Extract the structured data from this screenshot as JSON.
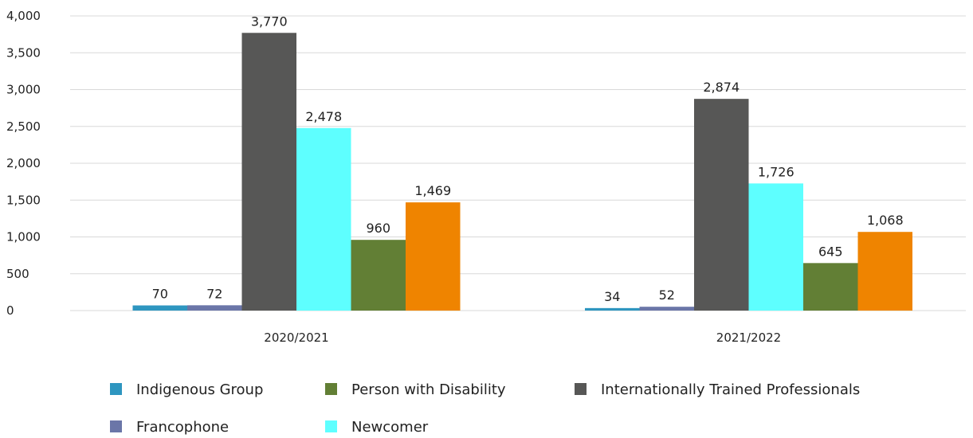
{
  "chart_data": {
    "type": "bar",
    "title": "",
    "xlabel": "",
    "ylabel": "",
    "ylim": [
      0,
      4000
    ],
    "yticks": [
      0,
      500,
      1000,
      1500,
      2000,
      2500,
      3000,
      3500,
      4000
    ],
    "ytick_labels": [
      "0",
      "500",
      "1,000",
      "1,500",
      "2,000",
      "2,500",
      "3,000",
      "3,500",
      "4,000"
    ],
    "grid": true,
    "legend_position": "bottom",
    "categories": [
      "2020/2021",
      "2021/2022"
    ],
    "series": [
      {
        "name": "Indigenous Group",
        "color": "#2e96c0",
        "values": [
          70,
          34
        ],
        "labels": [
          "70",
          "34"
        ]
      },
      {
        "name": "Francophone",
        "color": "#6b76a8",
        "values": [
          72,
          52
        ],
        "labels": [
          "72",
          "52"
        ]
      },
      {
        "name": "Internationally Trained Professionals",
        "color": "#575756",
        "values": [
          3770,
          2874
        ],
        "labels": [
          "3,770",
          "2,874"
        ]
      },
      {
        "name": "Newcomer",
        "color": "#5effff",
        "values": [
          2478,
          1726
        ],
        "labels": [
          "2,478",
          "1,726"
        ]
      },
      {
        "name": "Person with Disability",
        "color": "#627f35",
        "values": [
          960,
          645
        ],
        "labels": [
          "960",
          "645"
        ]
      },
      {
        "name": "",
        "color": "#ef8400",
        "values": [
          1469,
          1068
        ],
        "labels": [
          "1,469",
          "1,068"
        ]
      }
    ],
    "legend": [
      {
        "series_index": 0,
        "label": "Indigenous Group"
      },
      {
        "series_index": 4,
        "label": "Person with Disability"
      },
      {
        "series_index": 2,
        "label": "Internationally Trained Professionals"
      },
      {
        "series_index": 1,
        "label": "Francophone"
      },
      {
        "series_index": 3,
        "label": "Newcomer"
      }
    ]
  }
}
